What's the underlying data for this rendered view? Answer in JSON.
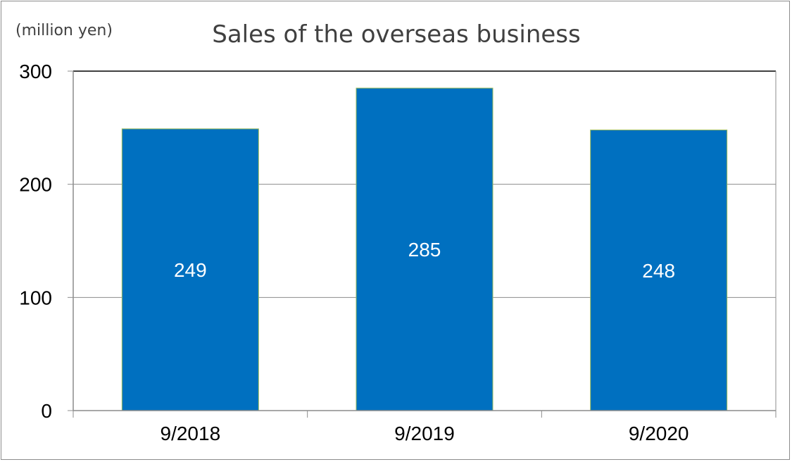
{
  "chart_data": {
    "type": "bar",
    "title": "Sales of the overseas business",
    "unit_label": "(million yen)",
    "categories": [
      "9/2018",
      "9/2019",
      "9/2020"
    ],
    "values": [
      249,
      285,
      248
    ],
    "data_labels": [
      "249",
      "285",
      "248"
    ],
    "ylim": [
      0,
      300
    ],
    "yticks": [
      0,
      100,
      200,
      300
    ],
    "ytick_labels": [
      "0",
      "100",
      "200",
      "300"
    ],
    "grid": true,
    "legend": "none",
    "colors": {
      "bar": "#0070C0",
      "bar_edge": "#9BBB59",
      "grid": "#8c8c8c",
      "axis": "#8c8c8c"
    }
  }
}
